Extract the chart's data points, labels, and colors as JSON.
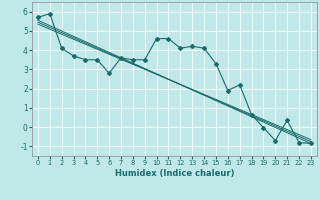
{
  "xlabel": "Humidex (Indice chaleur)",
  "background_color": "#c0e8e8",
  "grid_color": "#ffffff",
  "line_color": "#1a6b6b",
  "xlim": [
    -0.5,
    23.5
  ],
  "ylim": [
    -1.5,
    6.5
  ],
  "x_ticks": [
    0,
    1,
    2,
    3,
    4,
    5,
    6,
    7,
    8,
    9,
    10,
    11,
    12,
    13,
    14,
    15,
    16,
    17,
    18,
    19,
    20,
    21,
    22,
    23
  ],
  "y_ticks": [
    -1,
    0,
    1,
    2,
    3,
    4,
    5,
    6
  ],
  "main_line_x": [
    0,
    1,
    2,
    3,
    4,
    5,
    6,
    7,
    8,
    9,
    10,
    11,
    12,
    13,
    14,
    15,
    16,
    17,
    18,
    19,
    20,
    21,
    22,
    23
  ],
  "main_line_y": [
    5.7,
    5.9,
    4.1,
    3.7,
    3.5,
    3.5,
    2.8,
    3.6,
    3.5,
    3.5,
    4.6,
    4.6,
    4.1,
    4.2,
    4.1,
    3.3,
    1.9,
    2.2,
    0.65,
    -0.02,
    -0.7,
    0.35,
    -0.8,
    -0.85
  ],
  "trend_line1_x": [
    0,
    23
  ],
  "trend_line1_y": [
    5.55,
    -0.85
  ],
  "trend_line2_x": [
    0,
    23
  ],
  "trend_line2_y": [
    5.45,
    -0.75
  ],
  "trend_line3_x": [
    0,
    23
  ],
  "trend_line3_y": [
    5.35,
    -0.65
  ]
}
